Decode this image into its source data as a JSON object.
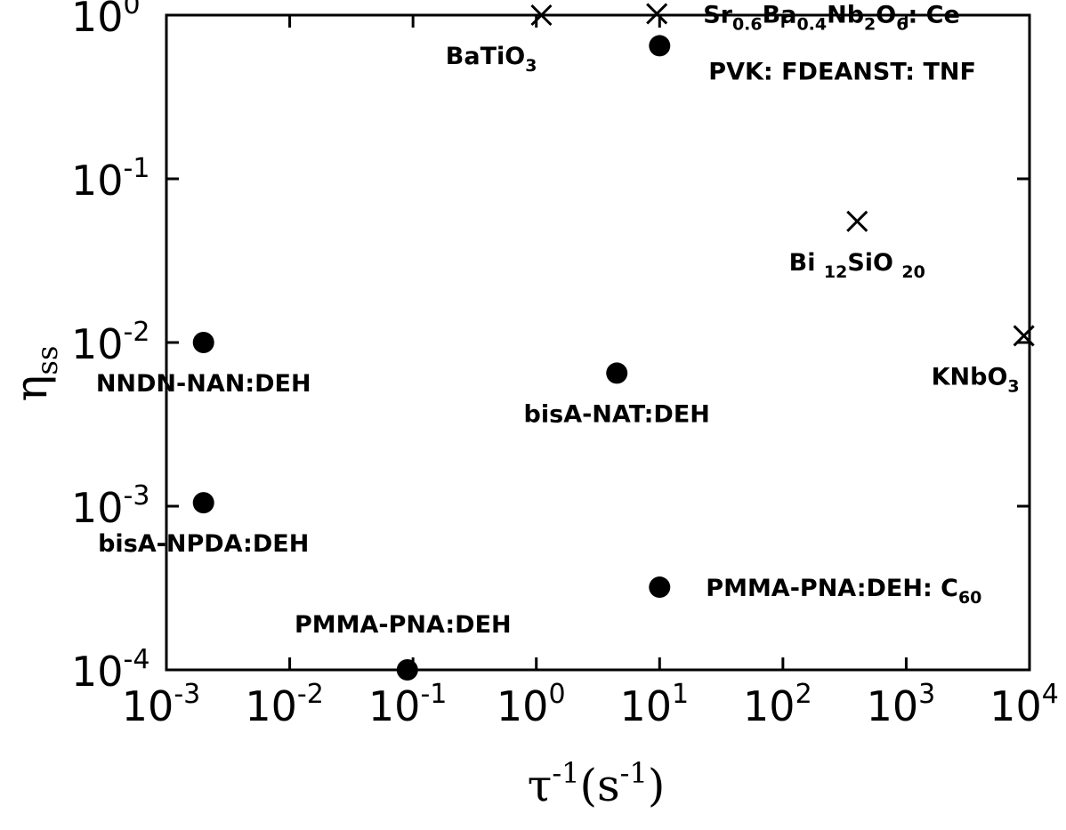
{
  "chart_data": {
    "type": "scatter",
    "xlabel": {
      "base": "τ",
      "sup": "-1",
      "unit_open": "(s",
      "unit_sup": "-1",
      "unit_close": ")"
    },
    "ylabel": {
      "base": "η",
      "sub": "ss"
    },
    "x_scale": "log",
    "y_scale": "log",
    "xlim": [
      0.001,
      10000
    ],
    "ylim": [
      0.0001,
      1
    ],
    "grid": false,
    "x_ticks": [
      {
        "value": 0.001,
        "base": "10",
        "exp": "-3"
      },
      {
        "value": 0.01,
        "base": "10",
        "exp": "-2"
      },
      {
        "value": 0.1,
        "base": "10",
        "exp": "-1"
      },
      {
        "value": 1,
        "base": "10",
        "exp": "0"
      },
      {
        "value": 10,
        "base": "10",
        "exp": "1"
      },
      {
        "value": 100,
        "base": "10",
        "exp": "2"
      },
      {
        "value": 1000,
        "base": "10",
        "exp": "3"
      },
      {
        "value": 10000,
        "base": "10",
        "exp": "4"
      }
    ],
    "y_ticks": [
      {
        "value": 1,
        "base": "10",
        "exp": "0"
      },
      {
        "value": 0.1,
        "base": "10",
        "exp": "-1"
      },
      {
        "value": 0.01,
        "base": "10",
        "exp": "-2"
      },
      {
        "value": 0.001,
        "base": "10",
        "exp": "-3"
      },
      {
        "value": 0.0001,
        "base": "10",
        "exp": "-4"
      }
    ],
    "points": [
      {
        "x": 1.1,
        "y": 1.0,
        "marker": "cross",
        "label": [
          {
            "t": "BaTiO"
          },
          {
            "t": "3",
            "sub": true
          }
        ],
        "label_anchor": "below-left"
      },
      {
        "x": 9.5,
        "y": 1.02,
        "marker": "cross",
        "label": [
          {
            "t": "Sr"
          },
          {
            "t": "0.6",
            "sub": true
          },
          {
            "t": "Ba"
          },
          {
            "t": "0.4",
            "sub": true
          },
          {
            "t": "Nb"
          },
          {
            "t": "2",
            "sub": true
          },
          {
            "t": "O"
          },
          {
            "t": "6",
            "sub": true
          },
          {
            "t": ": Ce"
          }
        ],
        "label_anchor": "right"
      },
      {
        "x": 10,
        "y": 0.65,
        "marker": "dot",
        "label": [
          {
            "t": "PVK: FDEANST: TNF"
          }
        ],
        "label_anchor": "right-below"
      },
      {
        "x": 400,
        "y": 0.055,
        "marker": "cross",
        "label": [
          {
            "t": "Bi "
          },
          {
            "t": "12",
            "sub": true
          },
          {
            "t": "SiO "
          },
          {
            "t": "20",
            "sub": true
          }
        ],
        "label_anchor": "below"
      },
      {
        "x": 9000,
        "y": 0.011,
        "marker": "cross",
        "label": [
          {
            "t": "KNbO"
          },
          {
            "t": "3",
            "sub": true
          }
        ],
        "label_anchor": "below-left"
      },
      {
        "x": 0.002,
        "y": 0.01,
        "marker": "dot",
        "label": [
          {
            "t": "NNDN-NAN:DEH"
          }
        ],
        "label_anchor": "below"
      },
      {
        "x": 4.5,
        "y": 0.0065,
        "marker": "dot",
        "label": [
          {
            "t": "bisA-NAT:DEH"
          }
        ],
        "label_anchor": "below"
      },
      {
        "x": 0.002,
        "y": 0.00105,
        "marker": "dot",
        "label": [
          {
            "t": "bisA-NPDA:DEH"
          }
        ],
        "label_anchor": "below"
      },
      {
        "x": 10,
        "y": 0.00032,
        "marker": "dot",
        "label": [
          {
            "t": "PMMA-PNA:DEH: C"
          },
          {
            "t": "60",
            "sub": true
          }
        ],
        "label_anchor": "right"
      },
      {
        "x": 0.09,
        "y": 0.0001,
        "marker": "dot",
        "label": [
          {
            "t": "PMMA-PNA:DEH"
          }
        ],
        "label_anchor": "above"
      }
    ]
  }
}
